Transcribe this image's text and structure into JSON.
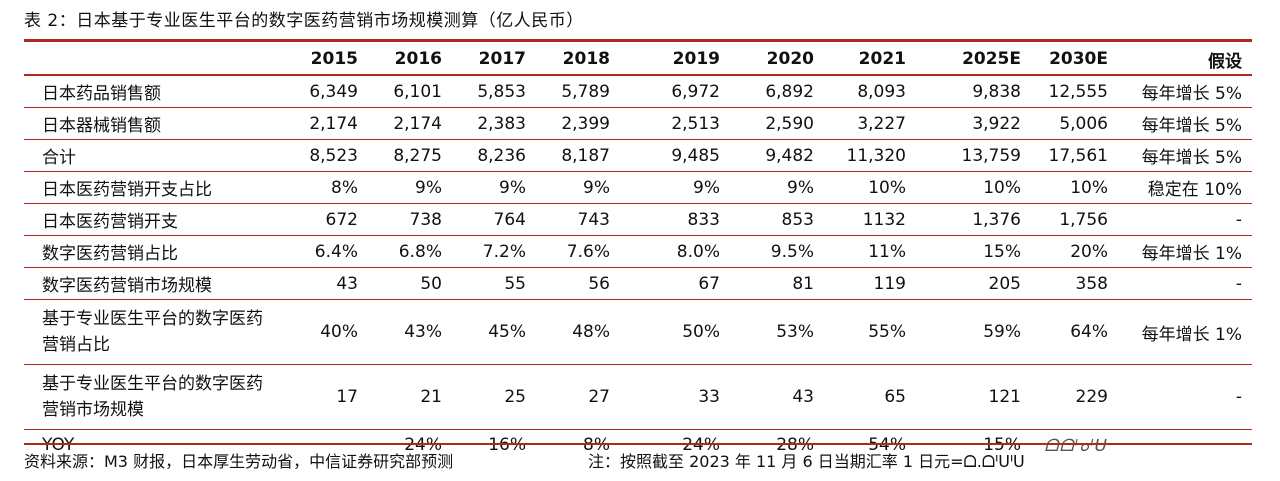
{
  "title": "表 2：日本基于专业医生平台的数字医药营销市场规模测算（亿人民币）",
  "columns": [
    "",
    "2015",
    "2016",
    "2017",
    "2018",
    "2019",
    "2020",
    "2021",
    "2025E",
    "2030E",
    "假设"
  ],
  "rows": [
    {
      "label": "日本药品销售额",
      "values": [
        "6,349",
        "6,101",
        "5,853",
        "5,789",
        "6,972",
        "6,892",
        "8,093",
        "9,838",
        "12,555"
      ],
      "assumption": "每年增长 5%"
    },
    {
      "label": "日本器械销售额",
      "values": [
        "2,174",
        "2,174",
        "2,383",
        "2,399",
        "2,513",
        "2,590",
        "3,227",
        "3,922",
        "5,006"
      ],
      "assumption": "每年增长 5%"
    },
    {
      "label": "合计",
      "values": [
        "8,523",
        "8,275",
        "8,236",
        "8,187",
        "9,485",
        "9,482",
        "11,320",
        "13,759",
        "17,561"
      ],
      "assumption": "每年增长 5%"
    },
    {
      "label": "日本医药营销开支占比",
      "values": [
        "8%",
        "9%",
        "9%",
        "9%",
        "9%",
        "9%",
        "10%",
        "10%",
        "10%"
      ],
      "assumption": "稳定在 10%"
    },
    {
      "label": "日本医药营销开支",
      "values": [
        "672",
        "738",
        "764",
        "743",
        "833",
        "853",
        "1132",
        "1,376",
        "1,756"
      ],
      "assumption": "-"
    },
    {
      "label": "数字医药营销占比",
      "values": [
        "6.4%",
        "6.8%",
        "7.2%",
        "7.6%",
        "8.0%",
        "9.5%",
        "11%",
        "15%",
        "20%"
      ],
      "assumption": "每年增长 1%"
    },
    {
      "label": "数字医药营销市场规模",
      "values": [
        "43",
        "50",
        "55",
        "56",
        "67",
        "81",
        "119",
        "205",
        "358"
      ],
      "assumption": "-"
    },
    {
      "label": "基于专业医生平台的数字医药营销占比",
      "values": [
        "40%",
        "43%",
        "45%",
        "48%",
        "50%",
        "53%",
        "55%",
        "59%",
        "64%"
      ],
      "assumption": "每年增长 1%"
    },
    {
      "label": "基于专业医生平台的数字医药营销市场规模",
      "values": [
        "17",
        "21",
        "25",
        "27",
        "33",
        "43",
        "65",
        "121",
        "229"
      ],
      "assumption": "-"
    },
    {
      "label": "YOY",
      "values": [
        "",
        "24%",
        "16%",
        "8%",
        "24%",
        "28%",
        "54%",
        "15%",
        "ᗝᗝᑊ๐ᑊᑌ"
      ],
      "assumption": ""
    }
  ],
  "source": "资料来源：M3 财报，日本厚生劳动省，中信证券研究部预测",
  "note": "注：按照截至 2023 年 11 月 6 日当期汇率 1 日元=ᗝ.ᗝᑊᑌᑊᑌ",
  "colors": {
    "rule": "#b1281d"
  }
}
